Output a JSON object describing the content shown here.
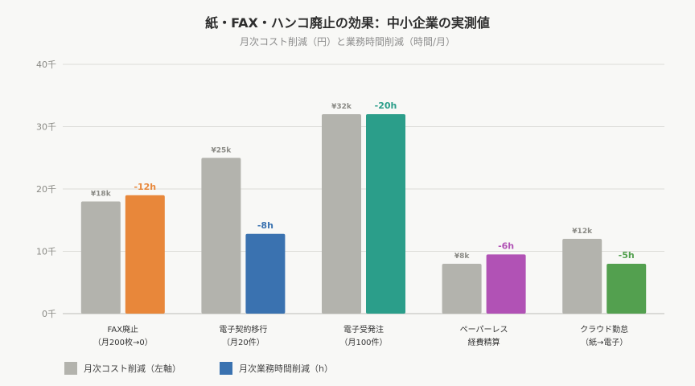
{
  "title": "紙・FAX・ハンコ廃止の効果：中小企業の実測値",
  "subtitle": "月次コスト削減（円）と業務時間削減（時間/月）",
  "chart_data": {
    "type": "bar",
    "categories": [
      [
        "FAX廃止",
        "（月200枚→0）"
      ],
      [
        "電子契約移行",
        "（月20件）"
      ],
      [
        "電子受発注",
        "（月100件）"
      ],
      [
        "ペーパーレス",
        "経費精算"
      ],
      [
        "クラウド勤怠",
        "（紙→電子）"
      ]
    ],
    "ylim": [
      0,
      40
    ],
    "yticks": [
      0,
      10,
      20,
      30,
      40
    ],
    "ytick_labels": [
      "0千",
      "10千",
      "20千",
      "30千",
      "40千"
    ],
    "grid": true,
    "legend_position": "bottom-left",
    "series": [
      {
        "name": "月次コスト削減（左軸）",
        "values": [
          18,
          25,
          32,
          8,
          12
        ],
        "labels": [
          "¥18k",
          "¥25k",
          "¥32k",
          "¥8k",
          "¥12k"
        ],
        "color": "#b3b3ad",
        "label_color": "#8a8a85"
      },
      {
        "name": "月次業務時間削減（h）",
        "values": [
          19,
          12.8,
          32,
          9.5,
          8
        ],
        "labels": [
          "-12h",
          "-8h",
          "-20h",
          "-6h",
          "-5h"
        ],
        "colors": [
          "#e8873a",
          "#3a72b0",
          "#2b9e8a",
          "#b152b5",
          "#53a04f"
        ],
        "label_colors": [
          "#e8873a",
          "#3a72b0",
          "#2b9e8a",
          "#b152b5",
          "#53a04f"
        ],
        "legend_color": "#3a72b0"
      }
    ]
  }
}
